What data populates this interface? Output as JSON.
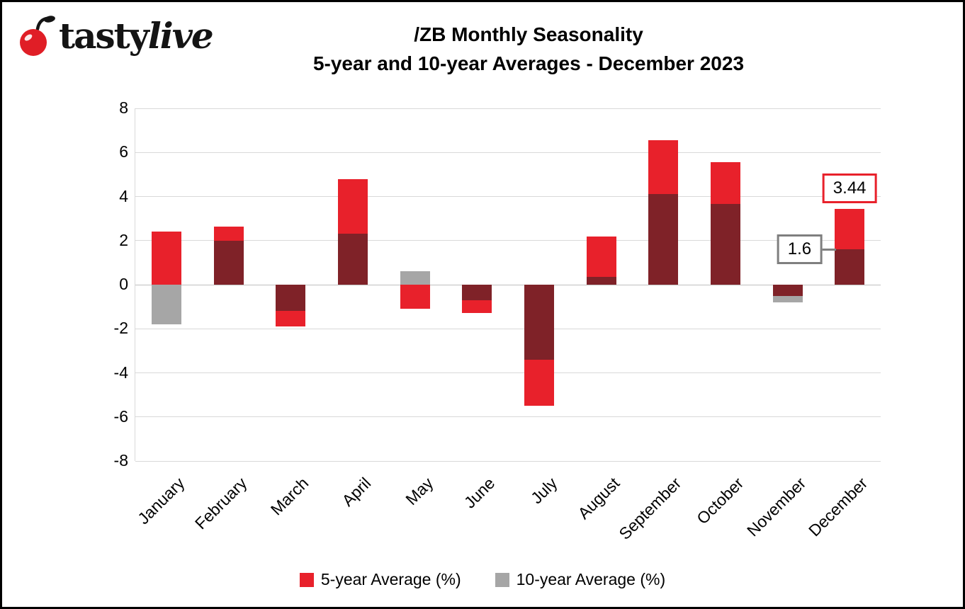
{
  "brand": {
    "tasty": "tasty",
    "live": "live",
    "cherry_color": "#e01e26"
  },
  "title": {
    "line1": "/ZB Monthly Seasonality",
    "line2": "5-year and 10-year Averages - December 2023"
  },
  "chart_data": {
    "type": "bar",
    "title": "/ZB Monthly Seasonality",
    "subtitle": "5-year and 10-year Averages - December 2023",
    "categories": [
      "January",
      "February",
      "March",
      "April",
      "May",
      "June",
      "July",
      "August",
      "September",
      "October",
      "November",
      "December"
    ],
    "series": [
      {
        "name": "5-year Average (%)",
        "color": "#e8212b",
        "values": [
          2.4,
          2.65,
          -1.9,
          4.8,
          -1.1,
          -1.3,
          -5.5,
          2.2,
          6.55,
          5.55,
          -0.5,
          3.44
        ]
      },
      {
        "name": "10-year Average (%)",
        "color": "#a6a6a6",
        "values": [
          -1.8,
          2.0,
          -1.2,
          2.3,
          0.6,
          -0.7,
          -3.4,
          0.35,
          4.1,
          3.65,
          -0.8,
          1.6
        ]
      }
    ],
    "overlap_color": "#7f2228",
    "ylim": [
      -8,
      8
    ],
    "yticks": [
      8,
      6,
      4,
      2,
      0,
      -2,
      -4,
      -6,
      -8
    ],
    "grid": true,
    "legend_position": "bottom",
    "annotations": [
      {
        "text": "3.44",
        "month_index": 11,
        "value": 3.44,
        "border_color": "#e8212b",
        "position": "above"
      },
      {
        "text": "1.6",
        "month_index": 11,
        "value": 1.6,
        "border_color": "#7f7f7f",
        "position": "left"
      }
    ]
  }
}
